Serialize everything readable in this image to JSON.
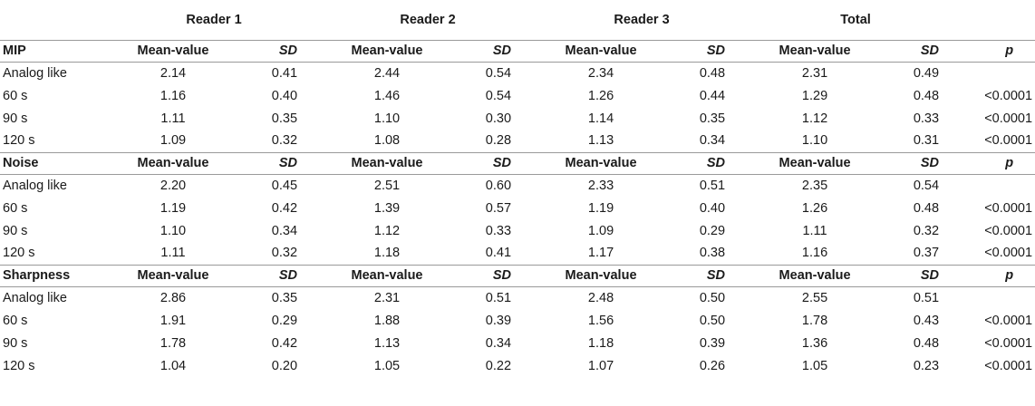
{
  "header": {
    "readers": [
      "Reader 1",
      "Reader 2",
      "Reader 3",
      "Total"
    ]
  },
  "sections": [
    {
      "title": "MIP",
      "mean_label": "Mean-value",
      "sd_label": "SD",
      "p_label": "p",
      "rows": [
        {
          "label": "Analog like",
          "r1m": "2.14",
          "r1s": "0.41",
          "r2m": "2.44",
          "r2s": "0.54",
          "r3m": "2.34",
          "r3s": "0.48",
          "tm": "2.31",
          "ts": "0.49",
          "p": ""
        },
        {
          "label": "60 s",
          "r1m": "1.16",
          "r1s": "0.40",
          "r2m": "1.46",
          "r2s": "0.54",
          "r3m": "1.26",
          "r3s": "0.44",
          "tm": "1.29",
          "ts": "0.48",
          "p": "<0.0001"
        },
        {
          "label": "90 s",
          "r1m": "1.11",
          "r1s": "0.35",
          "r2m": "1.10",
          "r2s": "0.30",
          "r3m": "1.14",
          "r3s": "0.35",
          "tm": "1.12",
          "ts": "0.33",
          "p": "<0.0001"
        },
        {
          "label": "120 s",
          "r1m": "1.09",
          "r1s": "0.32",
          "r2m": "1.08",
          "r2s": "0.28",
          "r3m": "1.13",
          "r3s": "0.34",
          "tm": "1.10",
          "ts": "0.31",
          "p": "<0.0001"
        }
      ]
    },
    {
      "title": "Noise",
      "mean_label": "Mean-value",
      "sd_label": "SD",
      "p_label": "p",
      "rows": [
        {
          "label": "Analog like",
          "r1m": "2.20",
          "r1s": "0.45",
          "r2m": "2.51",
          "r2s": "0.60",
          "r3m": "2.33",
          "r3s": "0.51",
          "tm": "2.35",
          "ts": "0.54",
          "p": ""
        },
        {
          "label": "60 s",
          "r1m": "1.19",
          "r1s": "0.42",
          "r2m": "1.39",
          "r2s": "0.57",
          "r3m": "1.19",
          "r3s": "0.40",
          "tm": "1.26",
          "ts": "0.48",
          "p": "<0.0001"
        },
        {
          "label": "90 s",
          "r1m": "1.10",
          "r1s": "0.34",
          "r2m": "1.12",
          "r2s": "0.33",
          "r3m": "1.09",
          "r3s": "0.29",
          "tm": "1.11",
          "ts": "0.32",
          "p": "<0.0001"
        },
        {
          "label": "120 s",
          "r1m": "1.11",
          "r1s": "0.32",
          "r2m": "1.18",
          "r2s": "0.41",
          "r3m": "1.17",
          "r3s": "0.38",
          "tm": "1.16",
          "ts": "0.37",
          "p": "<0.0001"
        }
      ]
    },
    {
      "title": "Sharpness",
      "mean_label": "Mean-value",
      "sd_label": "SD",
      "p_label": "p",
      "rows": [
        {
          "label": "Analog like",
          "r1m": "2.86",
          "r1s": "0.35",
          "r2m": "2.31",
          "r2s": "0.51",
          "r3m": "2.48",
          "r3s": "0.50",
          "tm": "2.55",
          "ts": "0.51",
          "p": ""
        },
        {
          "label": "60 s",
          "r1m": "1.91",
          "r1s": "0.29",
          "r2m": "1.88",
          "r2s": "0.39",
          "r3m": "1.56",
          "r3s": "0.50",
          "tm": "1.78",
          "ts": "0.43",
          "p": "<0.0001"
        },
        {
          "label": "90 s",
          "r1m": "1.78",
          "r1s": "0.42",
          "r2m": "1.13",
          "r2s": "0.34",
          "r3m": "1.18",
          "r3s": "0.39",
          "tm": "1.36",
          "ts": "0.48",
          "p": "<0.0001"
        },
        {
          "label": "120 s",
          "r1m": "1.04",
          "r1s": "0.20",
          "r2m": "1.05",
          "r2s": "0.22",
          "r3m": "1.07",
          "r3s": "0.26",
          "tm": "1.05",
          "ts": "0.23",
          "p": "<0.0001"
        }
      ]
    }
  ]
}
